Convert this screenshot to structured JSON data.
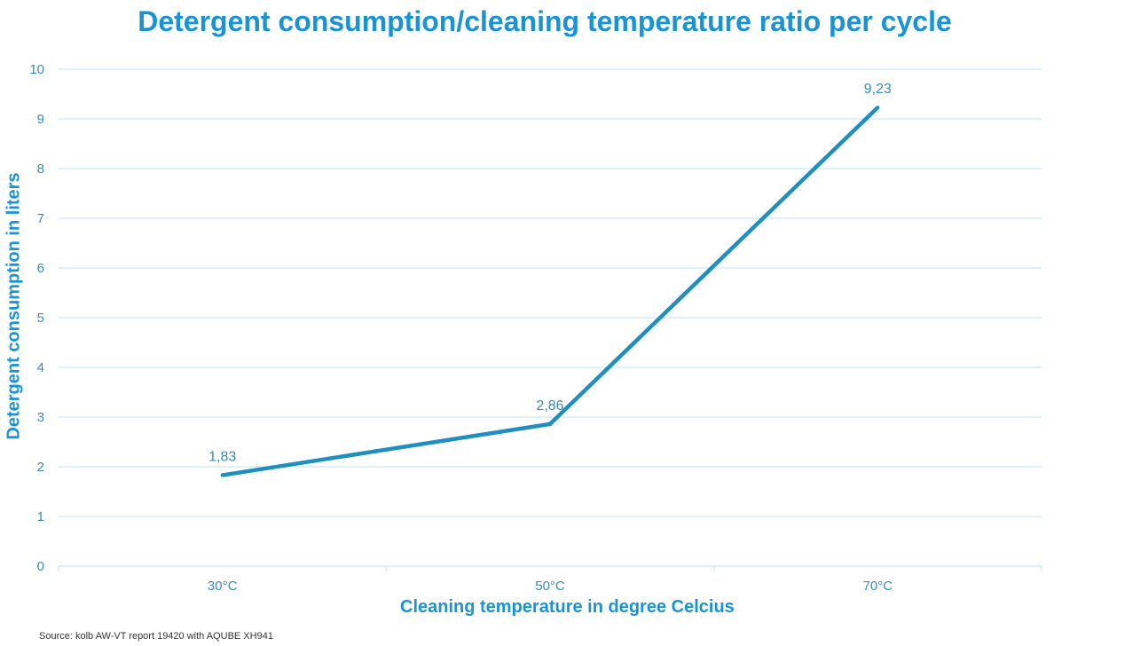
{
  "title": "Detergent consumption/cleaning temperature ratio per cycle",
  "source": "Source: kolb AW-VT report 19420 with AQUBE XH941",
  "colors": {
    "title": "#1993d1",
    "line": "#1f8fbf",
    "grid": "#d6ebf5",
    "tick_text": "#3a8bb0"
  },
  "chart_data": {
    "type": "line",
    "title": "Detergent consumption/cleaning temperature ratio per cycle",
    "xlabel": "Cleaning temperature in degree Celcius",
    "ylabel": "Detergent consumption in liters",
    "categories": [
      "30°C",
      "50°C",
      "70°C"
    ],
    "series": [
      {
        "values": [
          1.83,
          2.86,
          9.23
        ]
      }
    ],
    "data_labels": [
      "1,83",
      "2,86",
      "9,23"
    ],
    "ylim": [
      0,
      10
    ],
    "yticks": [
      "0",
      "1",
      "2",
      "3",
      "4",
      "5",
      "6",
      "7",
      "8",
      "9",
      "10"
    ],
    "grid": true,
    "legend": "none"
  }
}
